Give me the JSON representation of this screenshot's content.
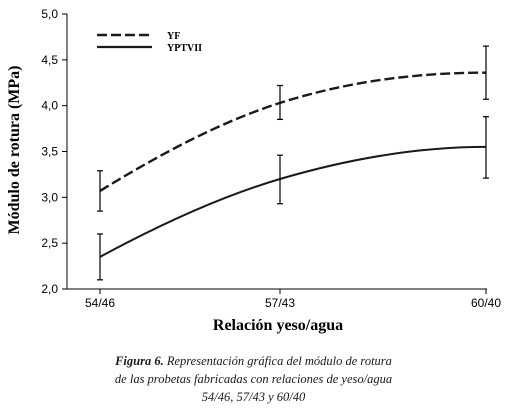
{
  "chart_data": {
    "type": "line",
    "categories": [
      "54/46",
      "57/43",
      "60/40"
    ],
    "ylim": [
      2.0,
      5.0
    ],
    "yticks": [
      "2,0",
      "2,5",
      "3,0",
      "3,5",
      "4,0",
      "4,5",
      "5,0"
    ],
    "ytick_values": [
      2.0,
      2.5,
      3.0,
      3.5,
      4.0,
      4.5,
      5.0
    ],
    "xlabel": "Relación yeso/agua",
    "ylabel": "Módulo de rotura (MPa)",
    "legend_position": "top-left",
    "series": [
      {
        "name": "YF",
        "style": "dashed",
        "values": [
          3.07,
          4.03,
          4.36
        ],
        "error_low": [
          2.85,
          3.85,
          4.07
        ],
        "error_high": [
          3.29,
          4.22,
          4.65
        ]
      },
      {
        "name": "YPTVII",
        "style": "solid",
        "values": [
          2.35,
          3.2,
          3.55
        ],
        "error_low": [
          2.1,
          2.93,
          3.21
        ],
        "error_high": [
          2.6,
          3.46,
          3.88
        ]
      }
    ]
  },
  "caption": {
    "label": "Figura 6.",
    "line1": " Representación gráfica del módulo de rotura",
    "line2": "de las probetas fabricadas con relaciones de yeso/agua",
    "line3": "54/46, 57/43 y 60/40"
  }
}
